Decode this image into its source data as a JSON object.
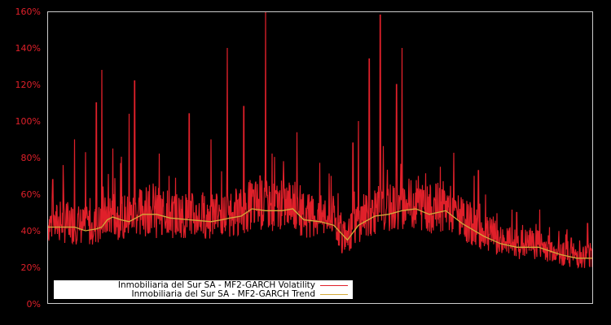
{
  "chart_data": {
    "type": "line",
    "title": "",
    "xlabel": "",
    "ylabel": "",
    "ylim": [
      0,
      160
    ],
    "yticks": [
      "0%",
      "20%",
      "40%",
      "60%",
      "80%",
      "100%",
      "120%",
      "140%",
      "160%"
    ],
    "grid": false,
    "legend_position": "lower-left",
    "colors": {
      "background": "#000000",
      "frame": "#cccccc",
      "tick_label": "#e0202a",
      "volatility": "#e0202a",
      "trend": "#d4aa3a"
    },
    "series": [
      {
        "name": "Inmobiliaria del Sur SA - MF2-GARCH Volatility",
        "x": [
          0,
          0.01,
          0.02,
          0.03,
          0.04,
          0.05,
          0.06,
          0.07,
          0.08,
          0.09,
          0.1,
          0.11,
          0.12,
          0.13,
          0.14,
          0.15,
          0.16,
          0.17,
          0.18,
          0.19,
          0.2,
          0.21,
          0.22,
          0.23,
          0.24,
          0.25,
          0.26,
          0.27,
          0.28,
          0.29,
          0.3,
          0.31,
          0.32,
          0.33,
          0.34,
          0.35,
          0.36,
          0.37,
          0.38,
          0.39,
          0.4,
          0.41,
          0.42,
          0.43,
          0.44,
          0.45,
          0.46,
          0.47,
          0.48,
          0.49,
          0.5,
          0.51,
          0.52,
          0.53,
          0.54,
          0.55,
          0.56,
          0.57,
          0.58,
          0.59,
          0.6,
          0.61,
          0.62,
          0.63,
          0.64,
          0.65,
          0.66,
          0.67,
          0.68,
          0.69,
          0.7,
          0.71,
          0.72,
          0.73,
          0.74,
          0.75,
          0.76,
          0.77,
          0.78,
          0.79,
          0.8,
          0.81,
          0.82,
          0.83,
          0.84,
          0.85,
          0.86,
          0.87,
          0.88,
          0.89,
          0.9,
          0.91,
          0.92,
          0.93,
          0.94,
          0.95,
          0.96,
          0.97,
          0.98,
          0.99,
          1.0
        ],
        "values": [
          50,
          68,
          45,
          64,
          38,
          90,
          42,
          83,
          36,
          110,
          128,
          40,
          85,
          35,
          36,
          104,
          122,
          38,
          37,
          48,
          36,
          38,
          62,
          36,
          40,
          36,
          104,
          38,
          42,
          36,
          90,
          60,
          38,
          140,
          50,
          38,
          108,
          50,
          45,
          70,
          160,
          55,
          60,
          48,
          45,
          65,
          50,
          42,
          60,
          48,
          46,
          45,
          70,
          35,
          28,
          40,
          88,
          100,
          60,
          134,
          62,
          158,
          48,
          50,
          120,
          140,
          55,
          48,
          70,
          62,
          60,
          57,
          75,
          50,
          45,
          52,
          42,
          40,
          44,
          73,
          40,
          38,
          35,
          36,
          34,
          32,
          50,
          30,
          34,
          30,
          40,
          28,
          42,
          30,
          26,
          38,
          36,
          24,
          22,
          44,
          65
        ]
      },
      {
        "name": "Inmobiliaria del Sur SA - MF2-GARCH Trend",
        "x": [
          0,
          0.05,
          0.07,
          0.09,
          0.1,
          0.1,
          0.11,
          0.12,
          0.135,
          0.15,
          0.175,
          0.2,
          0.225,
          0.26,
          0.3,
          0.32,
          0.335,
          0.355,
          0.375,
          0.4,
          0.43,
          0.45,
          0.47,
          0.5,
          0.525,
          0.55,
          0.57,
          0.6,
          0.625,
          0.65,
          0.675,
          0.7,
          0.73,
          0.76,
          0.8,
          0.83,
          0.86,
          0.9,
          0.94,
          0.97,
          1.0
        ],
        "values": [
          42,
          42,
          40,
          41,
          42,
          42,
          46,
          47.5,
          46,
          45,
          49,
          49,
          47,
          46,
          45,
          46,
          47,
          48,
          52,
          51,
          51,
          52,
          46,
          45,
          43,
          35,
          43,
          48,
          49,
          51,
          52,
          49,
          51,
          44,
          37,
          33,
          31,
          31,
          27,
          25,
          25
        ]
      }
    ]
  },
  "legend": {
    "items": [
      {
        "label": "Inmobiliaria del Sur SA - MF2-GARCH Volatility",
        "color": "#e0202a"
      },
      {
        "label": "Inmobiliaria del Sur SA - MF2-GARCH Trend",
        "color": "#d4aa3a"
      }
    ]
  },
  "axis": {
    "y_labels": [
      "160%",
      "140%",
      "120%",
      "100%",
      "80%",
      "60%",
      "40%",
      "20%",
      "0%"
    ]
  }
}
